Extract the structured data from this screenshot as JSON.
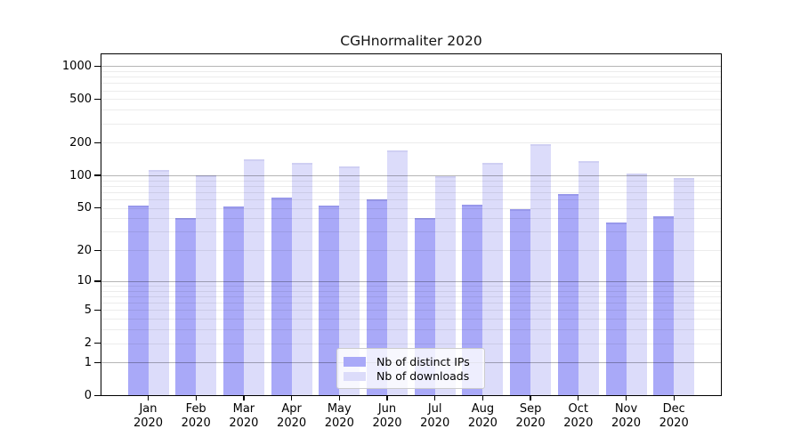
{
  "title": "CGHnormaliter 2020",
  "colors": {
    "ips_bar": "#a9a9f8",
    "downloads_bar": "#dcdcfa",
    "axis": "#000000",
    "grid_major": "rgba(0,0,0,0.29)",
    "grid_minor": "rgba(0,0,0,0.075)",
    "legend_border": "#cccccc"
  },
  "legend": {
    "items": [
      {
        "label": "Nb of distinct IPs",
        "color": "#a9a9f8"
      },
      {
        "label": "Nb of downloads",
        "color": "#dcdcfa"
      }
    ]
  },
  "chart_data": {
    "type": "bar",
    "title": "CGHnormaliter 2020",
    "categories": [
      "Jan 2020",
      "Feb 2020",
      "Mar 2020",
      "Apr 2020",
      "May 2020",
      "Jun 2020",
      "Jul 2020",
      "Aug 2020",
      "Sep 2020",
      "Oct 2020",
      "Nov 2020",
      "Dec 2020"
    ],
    "series": [
      {
        "name": "Nb of distinct IPs",
        "color": "#a9a9f8",
        "values": [
          53,
          40,
          52,
          62,
          53,
          60,
          40,
          54,
          49,
          68,
          37,
          42
        ]
      },
      {
        "name": "Nb of downloads",
        "color": "#dcdcfa",
        "values": [
          113,
          100,
          140,
          130,
          120,
          170,
          98,
          130,
          195,
          135,
          104,
          95
        ]
      }
    ],
    "xlabel": "",
    "ylabel": "",
    "yscale": "log1p",
    "ylim": [
      0,
      1000
    ],
    "yticks": [
      0,
      1,
      2,
      5,
      10,
      20,
      50,
      100,
      200,
      500,
      1000
    ],
    "grid": "horizontal, log minors light + decades dark",
    "legend_position": "lower center"
  }
}
